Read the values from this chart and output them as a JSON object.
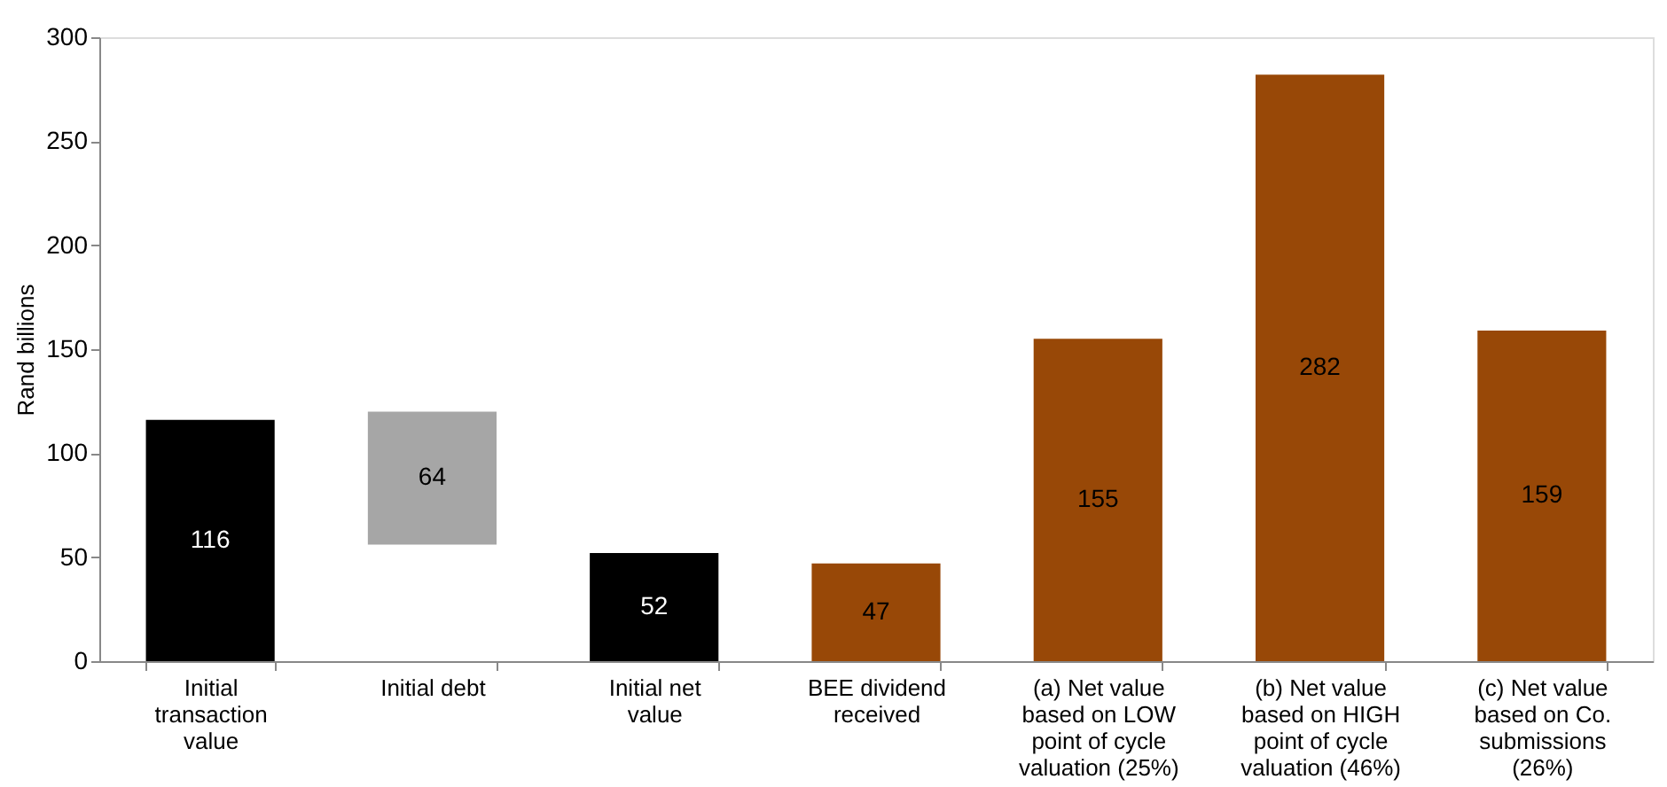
{
  "chart_data": {
    "type": "bar",
    "ylabel": "Rand billions",
    "categories": [
      "Initial transaction value",
      "Initial debt",
      "Initial net value",
      "BEE dividend received",
      "(a) Net value based on LOW point of cycle valuation (25%)",
      "(b) Net value based on HIGH point of cycle valuation (46%)",
      "(c) Net value based on Co. submissions (26%)"
    ],
    "values": [
      116,
      64,
      52,
      47,
      155,
      282,
      159
    ],
    "base": [
      0,
      56,
      0,
      0,
      0,
      0,
      0
    ],
    "colors": [
      "#000000",
      "#a6a6a6",
      "#000000",
      "#984807",
      "#984807",
      "#984807",
      "#984807"
    ],
    "ylim": [
      0,
      300
    ],
    "yticks": [
      0,
      50,
      100,
      150,
      200,
      250,
      300
    ],
    "data_labels": true,
    "grid": false
  }
}
